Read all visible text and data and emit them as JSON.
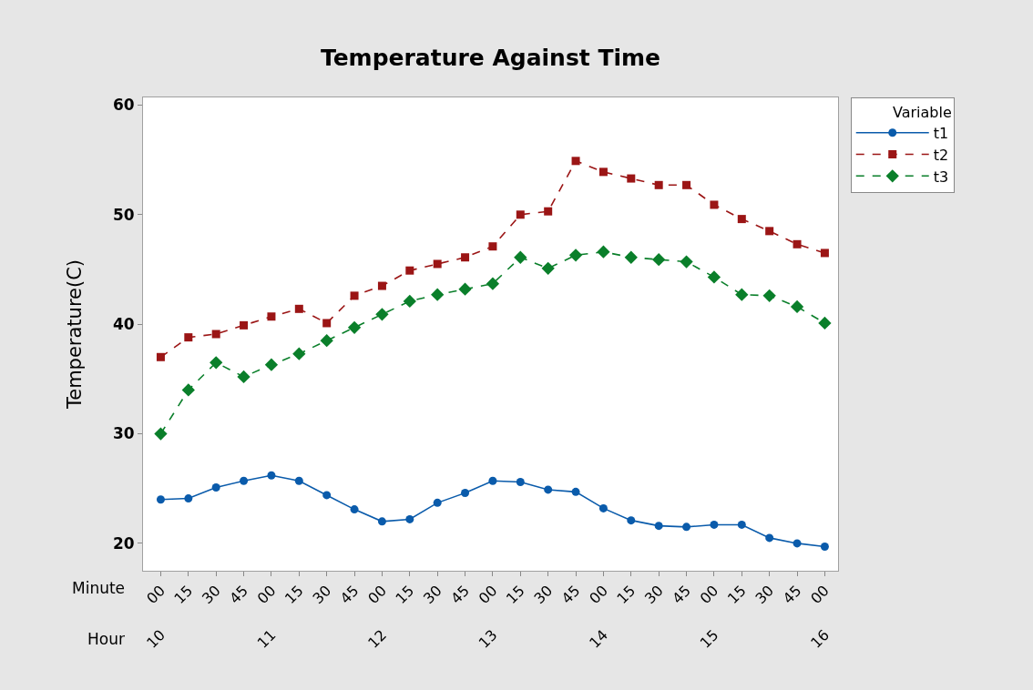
{
  "chart_data": {
    "type": "line",
    "title": "Temperature Against Time",
    "ylabel": "Temperature(C)",
    "xlabel": "Minute",
    "x2label": "Hour",
    "legend_title": "Variable",
    "legend": "top right",
    "grid": false,
    "categories": [
      "00",
      "15",
      "30",
      "45",
      "00",
      "15",
      "30",
      "45",
      "00",
      "15",
      "30",
      "45",
      "00",
      "15",
      "30",
      "45",
      "00",
      "15",
      "30",
      "45",
      "00",
      "15",
      "30",
      "45",
      "00"
    ],
    "x2lim": [
      9.84,
      16.12
    ],
    "x2ticks": [
      10,
      11,
      12,
      13,
      14,
      15,
      16
    ],
    "ylim": [
      17.5,
      60.7
    ],
    "yticks": [
      20,
      30,
      40,
      50,
      60
    ],
    "series": [
      {
        "name": "t1",
        "color": "#0a5bab",
        "marker": "circle",
        "line_style": "solid",
        "values": [
          24.0,
          24.1,
          25.1,
          25.7,
          26.2,
          25.7,
          24.4,
          23.1,
          22.0,
          22.2,
          23.7,
          24.6,
          25.7,
          25.6,
          24.9,
          24.7,
          23.2,
          22.1,
          21.6,
          21.5,
          21.7,
          21.7,
          20.5,
          20.0,
          19.7
        ]
      },
      {
        "name": "t2",
        "color": "#9b1515",
        "marker": "square",
        "line_style": "dashed",
        "values": [
          37.0,
          38.8,
          39.1,
          39.9,
          40.7,
          41.4,
          40.1,
          42.6,
          43.5,
          44.9,
          45.5,
          46.1,
          47.1,
          50.0,
          50.3,
          54.9,
          53.9,
          53.3,
          52.7,
          52.7,
          50.9,
          49.6,
          48.5,
          47.3,
          46.5
        ]
      },
      {
        "name": "t3",
        "color": "#0a7f2a",
        "marker": "diamond",
        "line_style": "dashed",
        "values": [
          30.0,
          34.0,
          36.5,
          35.2,
          36.3,
          37.3,
          38.5,
          39.7,
          40.9,
          42.1,
          42.7,
          43.2,
          43.7,
          46.1,
          45.1,
          46.3,
          46.6,
          46.1,
          45.9,
          45.7,
          44.3,
          42.7,
          42.6,
          41.6,
          40.1
        ]
      }
    ]
  }
}
